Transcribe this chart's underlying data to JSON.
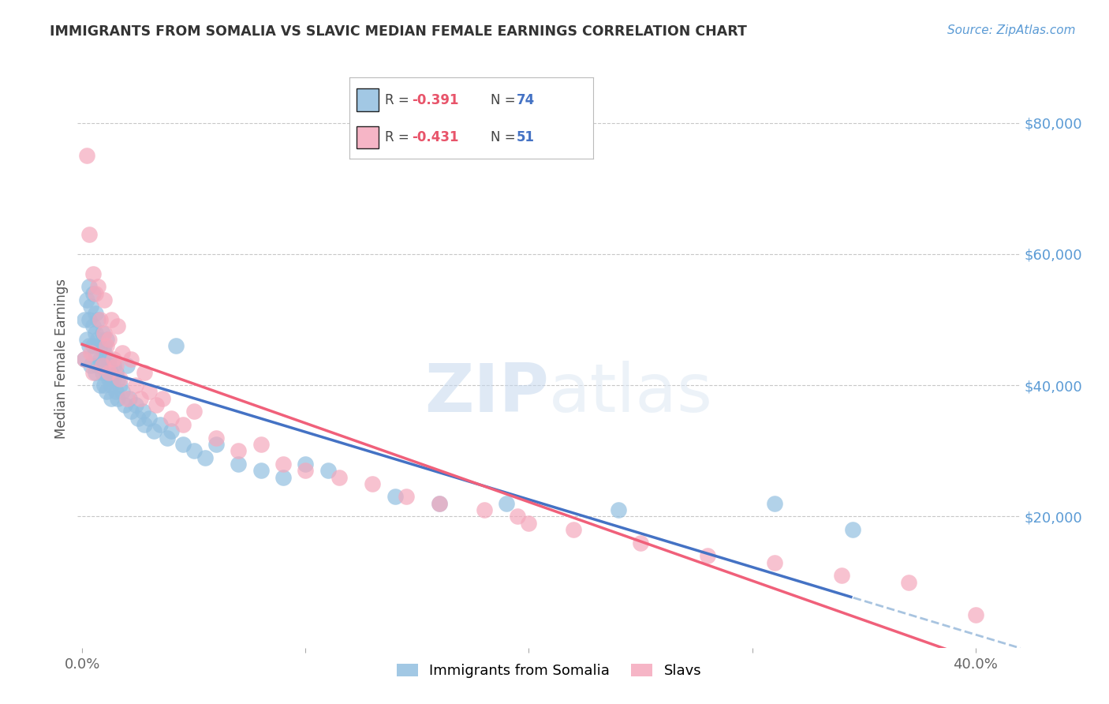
{
  "title": "IMMIGRANTS FROM SOMALIA VS SLAVIC MEDIAN FEMALE EARNINGS CORRELATION CHART",
  "source": "Source: ZipAtlas.com",
  "xlabel_ticks": [
    "0.0%",
    "",
    "",
    "",
    "40.0%"
  ],
  "xlabel_tick_vals": [
    0.0,
    0.1,
    0.2,
    0.3,
    0.4
  ],
  "ylabel": "Median Female Earnings",
  "ylabel_right_labels": [
    "$80,000",
    "$60,000",
    "$40,000",
    "$20,000"
  ],
  "ylabel_right_vals": [
    80000,
    60000,
    40000,
    20000
  ],
  "ylim": [
    0,
    88000
  ],
  "xlim": [
    -0.002,
    0.42
  ],
  "grid_color": "#c8c8c8",
  "background_color": "#ffffff",
  "somalia_color": "#92bfe0",
  "slavs_color": "#f5a8bc",
  "somalia_line_color": "#4472c4",
  "slavs_line_color": "#f0607a",
  "dashed_line_color": "#a8c4e0",
  "watermark_zip": "ZIP",
  "watermark_atlas": "atlas",
  "somalia_x": [
    0.001,
    0.001,
    0.002,
    0.002,
    0.003,
    0.003,
    0.003,
    0.004,
    0.004,
    0.005,
    0.005,
    0.005,
    0.006,
    0.006,
    0.006,
    0.006,
    0.007,
    0.007,
    0.007,
    0.008,
    0.008,
    0.008,
    0.009,
    0.009,
    0.01,
    0.01,
    0.01,
    0.01,
    0.011,
    0.011,
    0.011,
    0.012,
    0.012,
    0.012,
    0.013,
    0.013,
    0.013,
    0.014,
    0.014,
    0.015,
    0.015,
    0.016,
    0.016,
    0.017,
    0.018,
    0.019,
    0.02,
    0.021,
    0.022,
    0.024,
    0.025,
    0.027,
    0.028,
    0.03,
    0.032,
    0.035,
    0.038,
    0.04,
    0.042,
    0.045,
    0.05,
    0.055,
    0.06,
    0.07,
    0.08,
    0.09,
    0.1,
    0.11,
    0.14,
    0.16,
    0.19,
    0.24,
    0.31,
    0.345
  ],
  "somalia_y": [
    50000,
    44000,
    53000,
    47000,
    55000,
    50000,
    46000,
    52000,
    43000,
    49000,
    46000,
    54000,
    45000,
    48000,
    42000,
    51000,
    47000,
    43000,
    50000,
    46000,
    40000,
    44000,
    48000,
    42000,
    46000,
    43000,
    40000,
    45000,
    42000,
    47000,
    39000,
    44000,
    41000,
    43000,
    40000,
    42000,
    38000,
    43000,
    41000,
    42000,
    39000,
    41000,
    38000,
    40000,
    39000,
    37000,
    43000,
    38000,
    36000,
    37000,
    35000,
    36000,
    34000,
    35000,
    33000,
    34000,
    32000,
    33000,
    46000,
    31000,
    30000,
    29000,
    31000,
    28000,
    27000,
    26000,
    28000,
    27000,
    23000,
    22000,
    22000,
    21000,
    22000,
    18000
  ],
  "slavs_x": [
    0.001,
    0.002,
    0.003,
    0.004,
    0.005,
    0.005,
    0.006,
    0.007,
    0.008,
    0.009,
    0.01,
    0.01,
    0.011,
    0.012,
    0.012,
    0.013,
    0.014,
    0.015,
    0.016,
    0.017,
    0.018,
    0.02,
    0.022,
    0.024,
    0.026,
    0.028,
    0.03,
    0.033,
    0.036,
    0.04,
    0.045,
    0.05,
    0.06,
    0.07,
    0.08,
    0.09,
    0.1,
    0.115,
    0.13,
    0.145,
    0.16,
    0.18,
    0.2,
    0.22,
    0.25,
    0.28,
    0.31,
    0.34,
    0.37,
    0.4,
    0.195
  ],
  "slavs_y": [
    44000,
    75000,
    63000,
    45000,
    57000,
    42000,
    54000,
    55000,
    50000,
    43000,
    48000,
    53000,
    46000,
    47000,
    42000,
    50000,
    44000,
    43000,
    49000,
    41000,
    45000,
    38000,
    44000,
    40000,
    38000,
    42000,
    39000,
    37000,
    38000,
    35000,
    34000,
    36000,
    32000,
    30000,
    31000,
    28000,
    27000,
    26000,
    25000,
    23000,
    22000,
    21000,
    19000,
    18000,
    16000,
    14000,
    13000,
    11000,
    10000,
    5000,
    20000
  ]
}
